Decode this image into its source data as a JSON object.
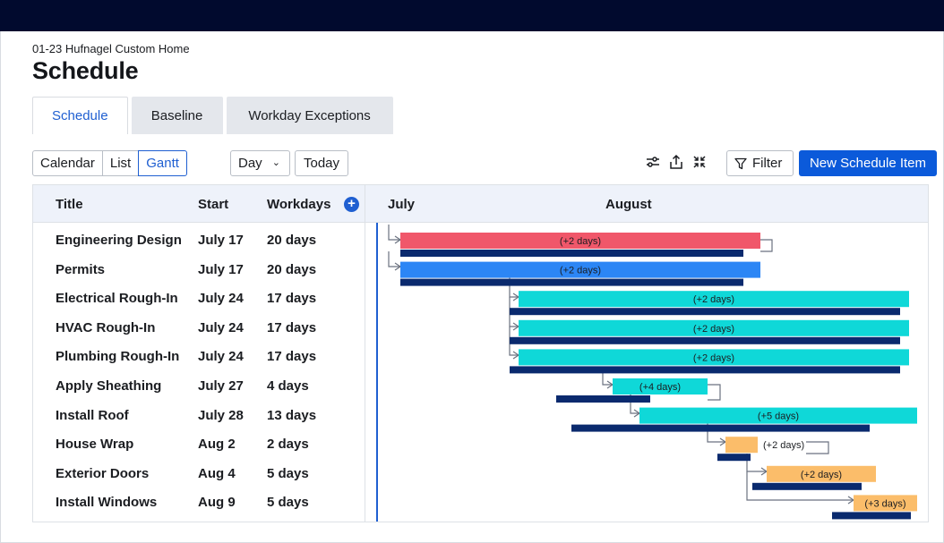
{
  "header": {
    "project": "01-23 Hufnagel Custom Home",
    "title": "Schedule"
  },
  "tabs": [
    {
      "label": "Schedule",
      "active": true
    },
    {
      "label": "Baseline",
      "active": false
    },
    {
      "label": "Workday Exceptions",
      "active": false
    }
  ],
  "views": [
    {
      "label": "Calendar",
      "active": false
    },
    {
      "label": "List",
      "active": false
    },
    {
      "label": "Gantt",
      "active": true
    }
  ],
  "toolbar": {
    "zoom_value": "Day",
    "today_label": "Today",
    "filter_label": "Filter",
    "new_item_label": "New Schedule Item",
    "icons": [
      "settings-sliders-icon",
      "share-icon",
      "collapse-icon",
      "filter-icon"
    ]
  },
  "grid": {
    "columns": {
      "title": "Title",
      "start": "Start",
      "workdays": "Workdays"
    },
    "months": [
      "July",
      "August"
    ],
    "rows": [
      {
        "title": "Engineering Design",
        "start": "July 17",
        "workdays": "20 days",
        "slip": "(+2 days)",
        "color": "#f0576a"
      },
      {
        "title": "Permits",
        "start": "July 17",
        "workdays": "20 days",
        "slip": "(+2 days)",
        "color": "#2c86f5"
      },
      {
        "title": "Electrical Rough-In",
        "start": "July 24",
        "workdays": "17 days",
        "slip": "(+2 days)",
        "color": "#0fd8d8"
      },
      {
        "title": "HVAC Rough-In",
        "start": "July 24",
        "workdays": "17 days",
        "slip": "(+2 days)",
        "color": "#0fd8d8"
      },
      {
        "title": "Plumbing Rough-In",
        "start": "July 24",
        "workdays": "17 days",
        "slip": "(+2 days)",
        "color": "#0fd8d8"
      },
      {
        "title": "Apply Sheathing",
        "start": "July 27",
        "workdays": "4 days",
        "slip": "(+4 days)",
        "color": "#0fd8d8"
      },
      {
        "title": "Install Roof",
        "start": "July 28",
        "workdays": "13 days",
        "slip": "(+5 days)",
        "color": "#0fd8d8"
      },
      {
        "title": "House Wrap",
        "start": "Aug 2",
        "workdays": "2 days",
        "slip": "(+2 days)",
        "color": "#fbbd6a"
      },
      {
        "title": "Exterior Doors",
        "start": "Aug 4",
        "workdays": "5 days",
        "slip": "(+2 days)",
        "color": "#fbbd6a"
      },
      {
        "title": "Install Windows",
        "start": "Aug 9",
        "workdays": "5 days",
        "slip": "(+3 days)",
        "color": "#fbbd6a"
      }
    ]
  },
  "colors": {
    "accent": "#1f5fd1",
    "primary_button": "#0b5ada",
    "baseline_bar": "#0a2a6e",
    "topbar": "#010a2e",
    "connector": "#6b7280"
  }
}
